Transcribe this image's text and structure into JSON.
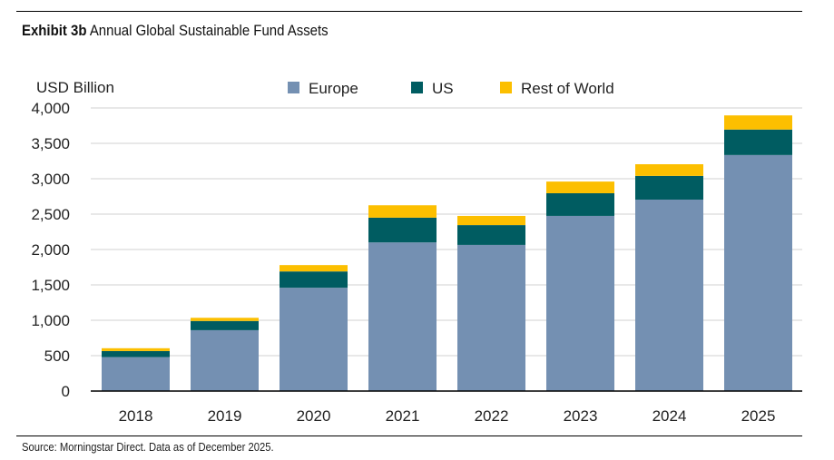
{
  "title": {
    "bold": "Exhibit 3b",
    "text": "Annual Global Sustainable Fund Assets"
  },
  "source": "Source: Morningstar Direct. Data as of December 2025.",
  "chart_data": {
    "type": "bar",
    "stacked": true,
    "ylabel": "USD Billion",
    "ylim": [
      0,
      4000
    ],
    "yticks": [
      "0",
      "500",
      "1,000",
      "1,500",
      "2,000",
      "2,500",
      "3,000",
      "3,500",
      "4,000"
    ],
    "grid": true,
    "legend": "top",
    "categories": [
      "2018",
      "2019",
      "2020",
      "2021",
      "2022",
      "2023",
      "2024",
      "2025"
    ],
    "series": [
      {
        "name": "Europe",
        "color": "#7490b2",
        "values": [
          480,
          860,
          1460,
          2100,
          2065,
          2475,
          2705,
          3335
        ]
      },
      {
        "name": "US",
        "color": "#005c61",
        "values": [
          85,
          130,
          230,
          350,
          280,
          320,
          335,
          360
        ]
      },
      {
        "name": "Rest of World",
        "color": "#fcbf00",
        "values": [
          40,
          45,
          90,
          175,
          130,
          165,
          165,
          200
        ]
      }
    ]
  }
}
